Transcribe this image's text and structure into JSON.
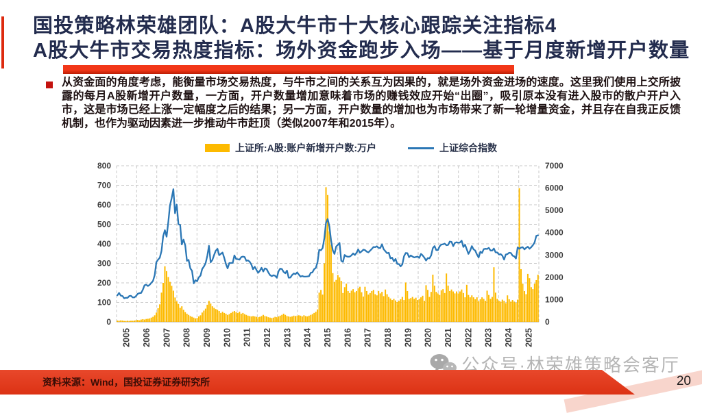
{
  "slide": {
    "title_line1": "国投策略林荣雄团队：A股大牛市十大核心跟踪关注指标4",
    "title_line2": "A股大牛市交易热度指标：场外资金跑步入场——基于月度新增开户数量",
    "bullet_text": "从资金面的角度考虑，能衡量市场交易热度，与牛市之间的关系互为因果的，就是场外资金进场的速度。这里我们使用上交所披露的每月A股新增开户数量，一方面，开户数量增加意味着市场的赚钱效应开始“出圈”，吸引原本没有进入股市的散户开户入市，这是市场已经上涨一定幅度之后的结果；另一方面，开户数量的增加也为市场带来了新一轮增量资金，并且存在自我正反馈机制，也作为驱动因素进一步推动牛市赶顶（类似2007年和2015年）。",
    "source": "资料来源：Wind，国投证券证券研究所",
    "watermark": "公众号·林荣雄策略会客厅",
    "page_number": "20"
  },
  "colors": {
    "title": "#232C4E",
    "accent_red": "#DD2A0F",
    "footer_red": "#E23A1B",
    "bar": "#FDBA00",
    "line": "#2B77B5",
    "grid": "#C9C9C9",
    "tick_text": "#3D3D3D"
  },
  "chart_data": {
    "type": "bar",
    "subtype": "monthly bars with overlaid line, dual axis",
    "title": "",
    "frequency": "monthly",
    "x_start": "2005-01",
    "x_end": "2025-09",
    "x_tick_labels": [
      "2005",
      "2006",
      "2007",
      "2008",
      "2009",
      "2010",
      "2011",
      "2012",
      "2013",
      "2014",
      "2015",
      "2016",
      "2017",
      "2018",
      "2019",
      "2020",
      "2021",
      "2022",
      "2023",
      "2024",
      "2025"
    ],
    "left_axis": {
      "min": 0,
      "max": 800,
      "step": 100,
      "ticks": [
        0,
        100,
        200,
        300,
        400,
        500,
        600,
        700,
        800
      ]
    },
    "right_axis": {
      "min": 0,
      "max": 7000,
      "step": 1000,
      "ticks": [
        0,
        1000,
        2000,
        3000,
        4000,
        5000,
        6000,
        7000
      ]
    },
    "grid": "dashed",
    "legend_position": "top",
    "series": [
      {
        "name": "上证所:A股:账户新增开户数:万户",
        "type": "bar",
        "axis": "left",
        "color": "#FDBA00",
        "values": [
          7,
          6,
          8,
          7,
          5,
          5,
          6,
          5,
          6,
          6,
          7,
          9,
          10,
          8,
          12,
          14,
          12,
          15,
          16,
          18,
          22,
          26,
          34,
          48,
          70,
          90,
          150,
          200,
          285,
          260,
          230,
          205,
          185,
          160,
          125,
          105,
          92,
          72,
          80,
          62,
          50,
          42,
          36,
          30,
          26,
          22,
          18,
          20,
          28,
          34,
          48,
          58,
          68,
          88,
          108,
          94,
          80,
          72,
          66,
          62,
          56,
          46,
          52,
          46,
          42,
          36,
          40,
          46,
          52,
          56,
          50,
          46,
          52,
          42,
          46,
          40,
          36,
          32,
          30,
          28,
          30,
          28,
          26,
          24,
          26,
          30,
          36,
          30,
          28,
          24,
          22,
          20,
          22,
          26,
          24,
          28,
          32,
          36,
          42,
          36,
          30,
          28,
          26,
          28,
          32,
          30,
          32,
          34,
          32,
          28,
          34,
          30,
          28,
          32,
          36,
          40,
          46,
          52,
          64,
          150,
          164,
          140,
          300,
          690,
          650,
          464,
          396,
          250,
          205,
          215,
          240,
          228,
          210,
          148,
          178,
          196,
          158,
          148,
          160,
          168,
          152,
          158,
          172,
          180,
          152,
          130,
          180,
          158,
          140,
          148,
          158,
          164,
          142,
          136,
          158,
          146,
          154,
          132,
          166,
          142,
          128,
          120,
          112,
          118,
          110,
          102,
          108,
          116,
          128,
          112,
          202,
          158,
          118,
          122,
          128,
          118,
          124,
          112,
          118,
          126,
          134,
          108,
          188,
          164,
          128,
          154,
          242,
          186,
          154,
          146,
          138,
          162,
          168,
          148,
          248,
          186,
          158,
          166,
          156,
          146,
          156,
          146,
          156,
          166,
          148,
          126,
          190,
          138,
          126,
          136,
          126,
          116,
          126,
          106,
          116,
          126,
          118,
          108,
          160,
          138,
          118,
          128,
          280,
          150,
          118,
          108,
          104,
          114,
          108,
          96,
          136,
          116,
          104,
          112,
          104,
          98,
          114,
          685,
          270,
          196,
          158,
          142,
          246,
          224,
          178,
          168,
          196,
          214,
          242
        ]
      },
      {
        "name": "上证综合指数",
        "type": "line",
        "axis": "right",
        "color": "#2B77B5",
        "values": [
          1190,
          1300,
          1180,
          1160,
          1060,
          1080,
          1080,
          1160,
          1170,
          1100,
          1100,
          1160,
          1260,
          1290,
          1300,
          1440,
          1640,
          1670,
          1610,
          1660,
          1750,
          1840,
          2100,
          2680,
          2790,
          2880,
          3180,
          3840,
          4110,
          3820,
          4470,
          5220,
          5550,
          5950,
          4870,
          5260,
          4380,
          4350,
          3470,
          3690,
          3430,
          2740,
          2780,
          2400,
          2290,
          1730,
          1870,
          1820,
          2000,
          2080,
          2370,
          2480,
          2630,
          2960,
          3410,
          2670,
          2780,
          2990,
          3190,
          3280,
          2990,
          3050,
          3110,
          2870,
          2590,
          2400,
          2640,
          2640,
          2650,
          2980,
          2820,
          2810,
          2790,
          2900,
          2930,
          2910,
          2740,
          2760,
          2700,
          2570,
          2360,
          2470,
          2330,
          2200,
          2290,
          2430,
          2260,
          2400,
          2370,
          2220,
          2100,
          2050,
          2090,
          2070,
          1980,
          2270,
          2390,
          2370,
          2240,
          2180,
          2300,
          1980,
          1990,
          2100,
          2170,
          2140,
          2220,
          2120,
          2030,
          2060,
          2030,
          2030,
          2040,
          2050,
          2200,
          2220,
          2360,
          2420,
          2680,
          3230,
          3210,
          3310,
          3750,
          4440,
          4610,
          4280,
          3660,
          3210,
          3050,
          3380,
          3450,
          3540,
          2740,
          2690,
          3000,
          2940,
          2920,
          2930,
          2980,
          3070,
          3000,
          3100,
          3250,
          3100,
          3160,
          3240,
          3220,
          3150,
          3120,
          3190,
          3270,
          3360,
          3350,
          3390,
          3320,
          3310,
          3480,
          3260,
          3170,
          3080,
          3100,
          2850,
          2880,
          2720,
          2820,
          2600,
          2590,
          2490,
          2580,
          2940,
          3090,
          3080,
          2900,
          2980,
          2930,
          2890,
          2910,
          2930,
          2870,
          3050,
          2980,
          2880,
          2750,
          2860,
          2850,
          2980,
          3310,
          3400,
          3220,
          3220,
          3390,
          3470,
          3480,
          3510,
          3440,
          3450,
          3600,
          3590,
          3400,
          3540,
          3570,
          3550,
          3560,
          3640,
          3360,
          3460,
          3250,
          3050,
          3190,
          3400,
          3250,
          3200,
          3020,
          2890,
          3150,
          3090,
          3260,
          3280,
          3270,
          3320,
          3200,
          3200,
          3290,
          3120,
          3110,
          3020,
          3040,
          2970,
          2790,
          3020,
          3040,
          3100,
          3090,
          2970,
          2940,
          2840,
          3340,
          3280,
          3330,
          3350,
          3250,
          3320,
          3370,
          3280,
          3350,
          3440,
          3560,
          3860,
          3880
        ]
      }
    ]
  }
}
